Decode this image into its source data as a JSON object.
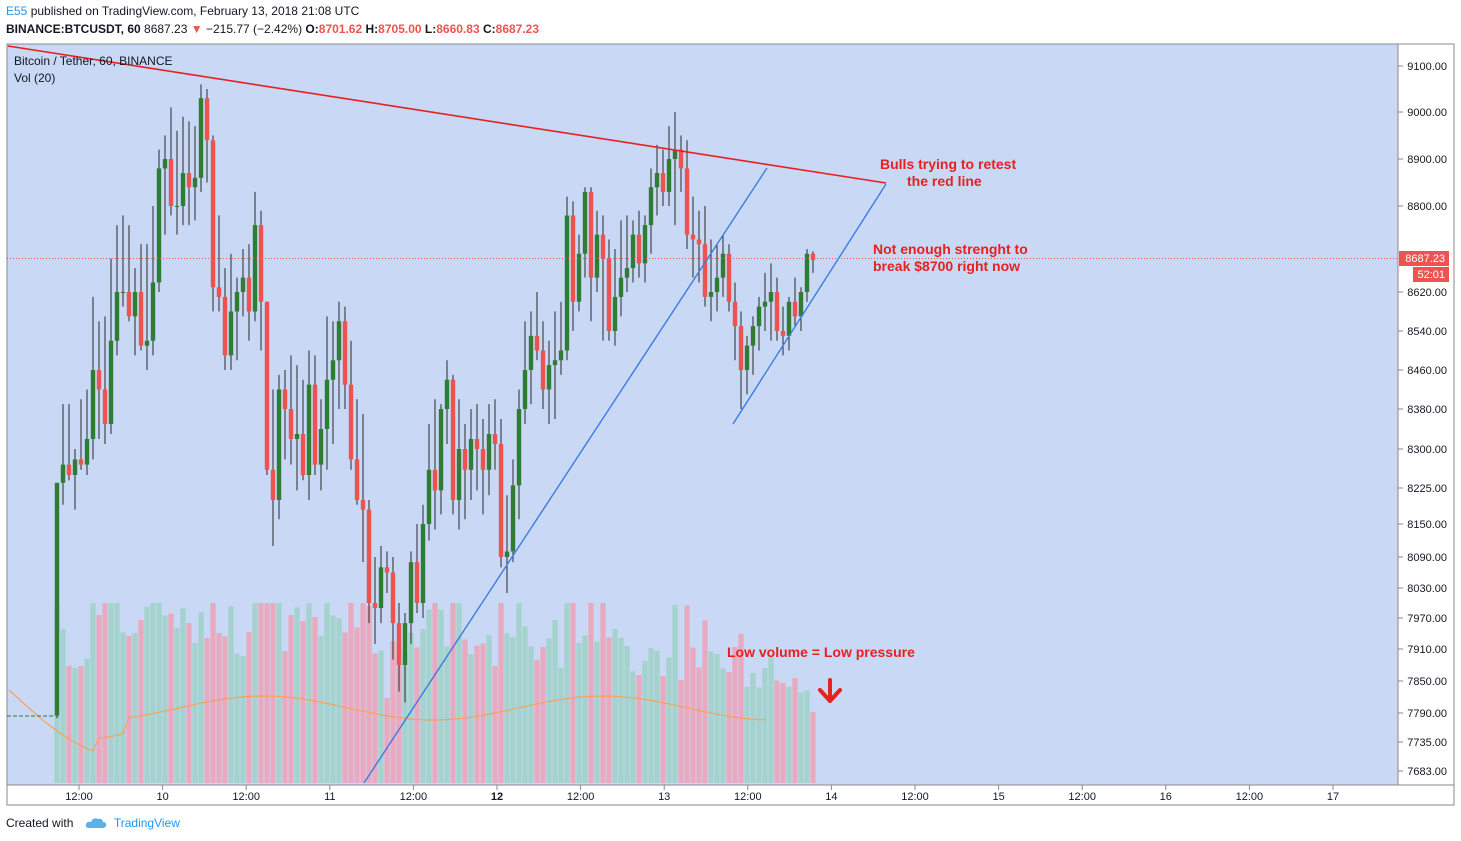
{
  "header": {
    "author": "E55",
    "published_text": "published on TradingView.com, February 13, 2018 21:08 UTC"
  },
  "ohlc_bar": {
    "symbol": "BINANCE:BTCUSDT, 60",
    "last": "8687.23",
    "change": "−215.77 (−2.42%)",
    "o_label": "O:",
    "o": "8701.62",
    "h_label": "H:",
    "h": "8705.00",
    "l_label": "L:",
    "l": "8660.83",
    "c_label": "C:",
    "c": "8687.23"
  },
  "legend": {
    "title": "Bitcoin / Tether, 60, BINANCE",
    "vol": "Vol (20)"
  },
  "price_badge": {
    "price": "8687.23",
    "countdown": "52:01"
  },
  "footer": {
    "created_with": "Created with",
    "brand": "TradingView"
  },
  "colors": {
    "plot_bg": "#c8d8f5",
    "up": "#2e7d32",
    "down": "#ef5350",
    "trend_red": "#e8201f",
    "trend_blue": "#3b7de0",
    "annotation": "#e8201f",
    "vol_ma": "#f5a25d",
    "vol_up": "#a4d2cc",
    "vol_down": "#e9aabf"
  },
  "chart_data": {
    "type": "candlestick",
    "interval": "60",
    "y_ticks": [
      9100,
      9000,
      8900,
      8800,
      8620,
      8540,
      8460,
      8380,
      8300,
      8225,
      8150,
      8090,
      8030,
      7970,
      7910,
      7850,
      7790,
      7735,
      7683
    ],
    "x_ticks": [
      {
        "label": "12:00",
        "bold": false
      },
      {
        "label": "10",
        "bold": false
      },
      {
        "label": "12:00",
        "bold": false
      },
      {
        "label": "11",
        "bold": false
      },
      {
        "label": "12:00",
        "bold": false
      },
      {
        "label": "12",
        "bold": true
      },
      {
        "label": "12:00",
        "bold": false
      },
      {
        "label": "13",
        "bold": false
      },
      {
        "label": "12:00",
        "bold": false
      },
      {
        "label": "14",
        "bold": false
      },
      {
        "label": "12:00",
        "bold": false
      },
      {
        "label": "15",
        "bold": false
      },
      {
        "label": "12:00",
        "bold": false
      },
      {
        "label": "16",
        "bold": false
      },
      {
        "label": "12:00",
        "bold": false
      },
      {
        "label": "17",
        "bold": false
      }
    ],
    "last_price": 8687.23,
    "candles": [
      [
        7785,
        8235,
        7780,
        8235
      ],
      [
        8235,
        8390,
        8190,
        8270
      ],
      [
        8270,
        8390,
        8240,
        8250
      ],
      [
        8250,
        8300,
        8180,
        8280
      ],
      [
        8280,
        8400,
        8260,
        8270
      ],
      [
        8270,
        8420,
        8250,
        8320
      ],
      [
        8320,
        8610,
        8280,
        8460
      ],
      [
        8460,
        8560,
        8320,
        8420
      ],
      [
        8420,
        8570,
        8310,
        8350
      ],
      [
        8350,
        8690,
        8330,
        8520
      ],
      [
        8520,
        8760,
        8490,
        8620
      ],
      [
        8620,
        8780,
        8590,
        8620
      ],
      [
        8620,
        8760,
        8560,
        8570
      ],
      [
        8570,
        8670,
        8490,
        8620
      ],
      [
        8620,
        8720,
        8500,
        8510
      ],
      [
        8510,
        8720,
        8460,
        8520
      ],
      [
        8520,
        8800,
        8490,
        8640
      ],
      [
        8640,
        8920,
        8620,
        8880
      ],
      [
        8880,
        8950,
        8740,
        8900
      ],
      [
        8900,
        9010,
        8780,
        8800
      ],
      [
        8800,
        8960,
        8740,
        8800
      ],
      [
        8800,
        8990,
        8760,
        8870
      ],
      [
        8870,
        8980,
        8760,
        8840
      ],
      [
        8840,
        8970,
        8770,
        8860
      ],
      [
        8860,
        9060,
        8830,
        9030
      ],
      [
        9030,
        9050,
        8850,
        8940
      ],
      [
        8940,
        8950,
        8580,
        8630
      ],
      [
        8630,
        8780,
        8580,
        8610
      ],
      [
        8610,
        8670,
        8460,
        8490
      ],
      [
        8490,
        8700,
        8460,
        8580
      ],
      [
        8580,
        8650,
        8480,
        8620
      ],
      [
        8620,
        8710,
        8570,
        8650
      ],
      [
        8650,
        8720,
        8520,
        8580
      ],
      [
        8580,
        8830,
        8560,
        8760
      ],
      [
        8760,
        8790,
        8500,
        8600
      ],
      [
        8600,
        8600,
        8250,
        8260
      ],
      [
        8260,
        8420,
        8110,
        8200
      ],
      [
        8200,
        8450,
        8160,
        8420
      ],
      [
        8420,
        8460,
        8280,
        8380
      ],
      [
        8380,
        8490,
        8270,
        8320
      ],
      [
        8320,
        8470,
        8220,
        8330
      ],
      [
        8330,
        8440,
        8240,
        8250
      ],
      [
        8250,
        8500,
        8200,
        8430
      ],
      [
        8430,
        8490,
        8250,
        8270
      ],
      [
        8270,
        8400,
        8220,
        8340
      ],
      [
        8340,
        8570,
        8260,
        8440
      ],
      [
        8440,
        8560,
        8310,
        8480
      ],
      [
        8480,
        8600,
        8380,
        8560
      ],
      [
        8560,
        8590,
        8380,
        8430
      ],
      [
        8430,
        8520,
        8260,
        8280
      ],
      [
        8280,
        8400,
        8190,
        8200
      ],
      [
        8200,
        8370,
        8080,
        8180
      ],
      [
        8180,
        8200,
        7960,
        8000
      ],
      [
        8000,
        8090,
        7920,
        7990
      ],
      [
        7990,
        8110,
        7960,
        8070
      ],
      [
        8070,
        8100,
        8020,
        8060
      ],
      [
        8060,
        8090,
        7890,
        7960
      ],
      [
        7960,
        8000,
        7830,
        7880
      ],
      [
        7880,
        7980,
        7810,
        7960
      ],
      [
        7960,
        8100,
        7920,
        8080
      ],
      [
        8080,
        8150,
        7980,
        8000
      ],
      [
        8000,
        8190,
        7970,
        8150
      ],
      [
        8150,
        8350,
        8120,
        8260
      ],
      [
        8260,
        8400,
        8140,
        8220
      ],
      [
        8220,
        8390,
        8170,
        8380
      ],
      [
        8380,
        8480,
        8310,
        8440
      ],
      [
        8440,
        8450,
        8170,
        8200
      ],
      [
        8200,
        8400,
        8140,
        8300
      ],
      [
        8300,
        8350,
        8160,
        8260
      ],
      [
        8260,
        8380,
        8200,
        8320
      ],
      [
        8320,
        8390,
        8220,
        8300
      ],
      [
        8300,
        8360,
        8170,
        8260
      ],
      [
        8260,
        8390,
        8210,
        8330
      ],
      [
        8330,
        8400,
        8260,
        8310
      ],
      [
        8310,
        8360,
        8070,
        8090
      ],
      [
        8090,
        8210,
        8020,
        8100
      ],
      [
        8100,
        8280,
        8080,
        8230
      ],
      [
        8230,
        8420,
        8160,
        8380
      ],
      [
        8380,
        8560,
        8350,
        8460
      ],
      [
        8460,
        8580,
        8390,
        8530
      ],
      [
        8530,
        8620,
        8480,
        8500
      ],
      [
        8500,
        8560,
        8380,
        8420
      ],
      [
        8420,
        8520,
        8350,
        8470
      ],
      [
        8470,
        8580,
        8360,
        8480
      ],
      [
        8480,
        8600,
        8450,
        8500
      ],
      [
        8500,
        8820,
        8480,
        8780
      ],
      [
        8780,
        8810,
        8540,
        8600
      ],
      [
        8600,
        8740,
        8580,
        8700
      ],
      [
        8700,
        8840,
        8650,
        8830
      ],
      [
        8830,
        8840,
        8560,
        8650
      ],
      [
        8650,
        8790,
        8620,
        8740
      ],
      [
        8740,
        8780,
        8520,
        8690
      ],
      [
        8690,
        8730,
        8520,
        8540
      ],
      [
        8540,
        8710,
        8510,
        8610
      ],
      [
        8610,
        8770,
        8570,
        8650
      ],
      [
        8650,
        8780,
        8620,
        8670
      ],
      [
        8670,
        8770,
        8640,
        8740
      ],
      [
        8740,
        8790,
        8650,
        8680
      ],
      [
        8680,
        8780,
        8640,
        8760
      ],
      [
        8760,
        8880,
        8700,
        8840
      ],
      [
        8840,
        8930,
        8780,
        8870
      ],
      [
        8870,
        8920,
        8800,
        8830
      ],
      [
        8830,
        8970,
        8800,
        8900
      ],
      [
        8900,
        9000,
        8760,
        8920
      ],
      [
        8920,
        8950,
        8830,
        8880
      ],
      [
        8880,
        8940,
        8710,
        8740
      ],
      [
        8740,
        8820,
        8650,
        8730
      ],
      [
        8730,
        8790,
        8640,
        8720
      ],
      [
        8720,
        8800,
        8590,
        8610
      ],
      [
        8610,
        8730,
        8560,
        8620
      ],
      [
        8620,
        8720,
        8580,
        8650
      ],
      [
        8650,
        8740,
        8610,
        8700
      ],
      [
        8700,
        8720,
        8580,
        8600
      ],
      [
        8600,
        8640,
        8480,
        8550
      ],
      [
        8550,
        8580,
        8380,
        8460
      ],
      [
        8460,
        8530,
        8410,
        8510
      ],
      [
        8510,
        8570,
        8450,
        8550
      ],
      [
        8550,
        8610,
        8500,
        8590
      ],
      [
        8590,
        8660,
        8540,
        8600
      ],
      [
        8600,
        8680,
        8520,
        8620
      ],
      [
        8620,
        8650,
        8520,
        8540
      ],
      [
        8540,
        8590,
        8490,
        8530
      ],
      [
        8530,
        8610,
        8500,
        8600
      ],
      [
        8600,
        8650,
        8550,
        8570
      ],
      [
        8570,
        8630,
        8540,
        8620
      ],
      [
        8620,
        8710,
        8600,
        8700
      ],
      [
        8700,
        8705,
        8660,
        8687
      ]
    ],
    "volume_ma": [
      7850,
      7800,
      7770,
      7760,
      7770,
      7780
    ],
    "lines": [
      {
        "color": "red",
        "from": [
          0,
          9120
        ],
        "to": [
          128,
          8850
        ]
      },
      {
        "color": "blue",
        "from": [
          75,
          7683
        ],
        "to": [
          116,
          8870
        ]
      },
      {
        "color": "blue",
        "from": [
          111,
          8360
        ],
        "to": [
          128,
          8850
        ]
      }
    ],
    "annotations": [
      {
        "text": "Bulls trying to retest",
        "color": "red"
      },
      {
        "text": "the red line",
        "color": "red"
      },
      {
        "text": "Not enough strenght to",
        "color": "red"
      },
      {
        "text": "break $8700 right now",
        "color": "red"
      },
      {
        "text": "Low volume = Low pressure",
        "color": "red"
      }
    ]
  }
}
